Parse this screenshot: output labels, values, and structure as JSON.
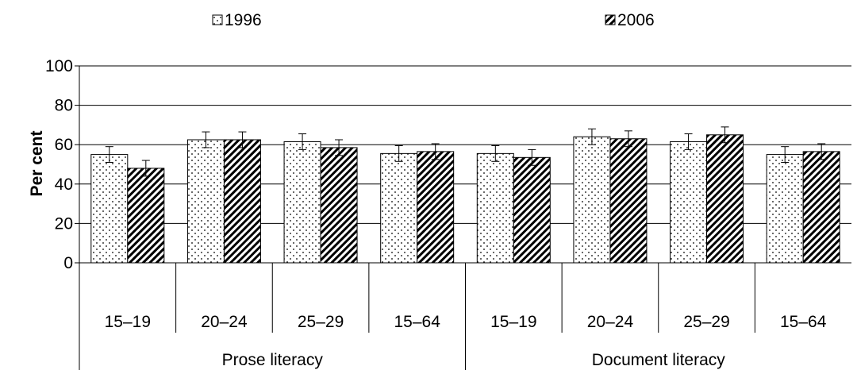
{
  "chart_data": {
    "type": "bar",
    "title": "",
    "ylabel": "Per cent",
    "xlabel": "",
    "ylim": [
      0,
      100
    ],
    "yticks": [
      0,
      20,
      40,
      60,
      80,
      100
    ],
    "grid": true,
    "legend_position": "top",
    "groups": [
      {
        "label": "Prose literacy",
        "categories": [
          "15–19",
          "20–24",
          "25–29",
          "15–64"
        ]
      },
      {
        "label": "Document literacy",
        "categories": [
          "15–19",
          "20–24",
          "25–29",
          "15–64"
        ]
      }
    ],
    "series": [
      {
        "name": "1996",
        "pattern": "dots",
        "values": [
          55,
          62.5,
          61.5,
          55.5,
          55.5,
          64,
          61.5,
          55
        ],
        "error": [
          4,
          4,
          4,
          4,
          4,
          4,
          4,
          4
        ]
      },
      {
        "name": "2006",
        "pattern": "diagonal-hatch",
        "values": [
          48,
          62.5,
          58.5,
          56.5,
          53.5,
          63,
          65,
          56.5
        ],
        "error": [
          4,
          4,
          4,
          4,
          4,
          4,
          4,
          4
        ]
      }
    ],
    "colors": {
      "bar_fill": "#ffffff",
      "pattern": "#000000",
      "grid": "#000000"
    }
  }
}
